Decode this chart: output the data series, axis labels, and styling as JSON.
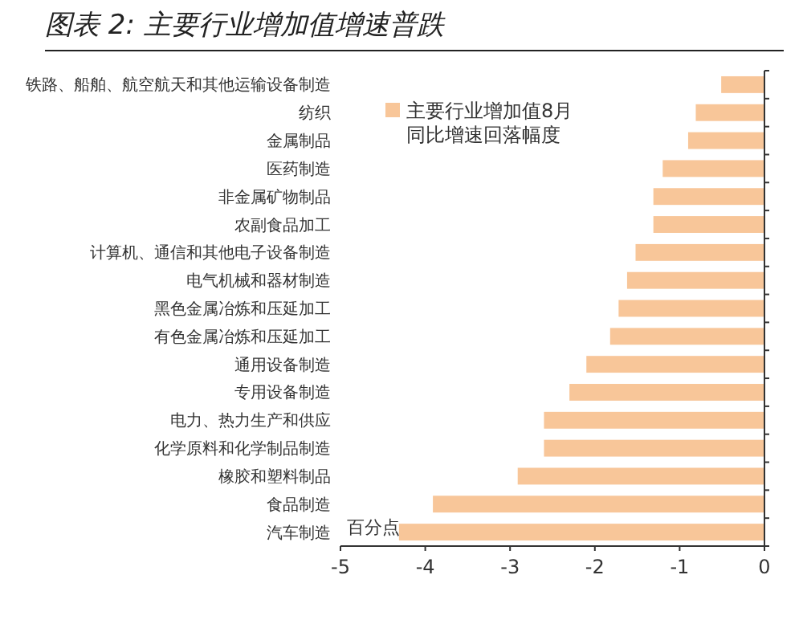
{
  "chart_data": {
    "type": "bar",
    "orientation": "horizontal",
    "title": "图表 2: 主要行业增加值增速普跌",
    "categories": [
      "铁路、船舶、航空航天和其他运输设备制造",
      "纺织",
      "金属制品",
      "医药制造",
      "非金属矿物制品",
      "农副食品加工",
      "计算机、通信和其他电子设备制造",
      "电气机械和器材制造",
      "黑色金属冶炼和压延加工",
      "有色金属冶炼和压延加工",
      "通用设备制造",
      "专用设备制造",
      "电力、热力生产和供应",
      "化学原料和化学制品制造",
      "橡胶和塑料制品",
      "食品制造",
      "汽车制造"
    ],
    "series": [
      {
        "name": "主要行业增加值8月同比增速回落幅度",
        "color": "#f8c699",
        "values": [
          -0.51,
          -0.81,
          -0.9,
          -1.2,
          -1.31,
          -1.31,
          -1.52,
          -1.62,
          -1.72,
          -1.82,
          -2.1,
          -2.3,
          -2.6,
          -2.6,
          -2.91,
          -3.91,
          -4.31
        ]
      }
    ],
    "xlim": [
      -5,
      0
    ],
    "xticks": [
      -5,
      -4,
      -3,
      -2,
      -1,
      0
    ],
    "legend": "top",
    "grid": false,
    "annotations": [
      "百分点"
    ]
  }
}
